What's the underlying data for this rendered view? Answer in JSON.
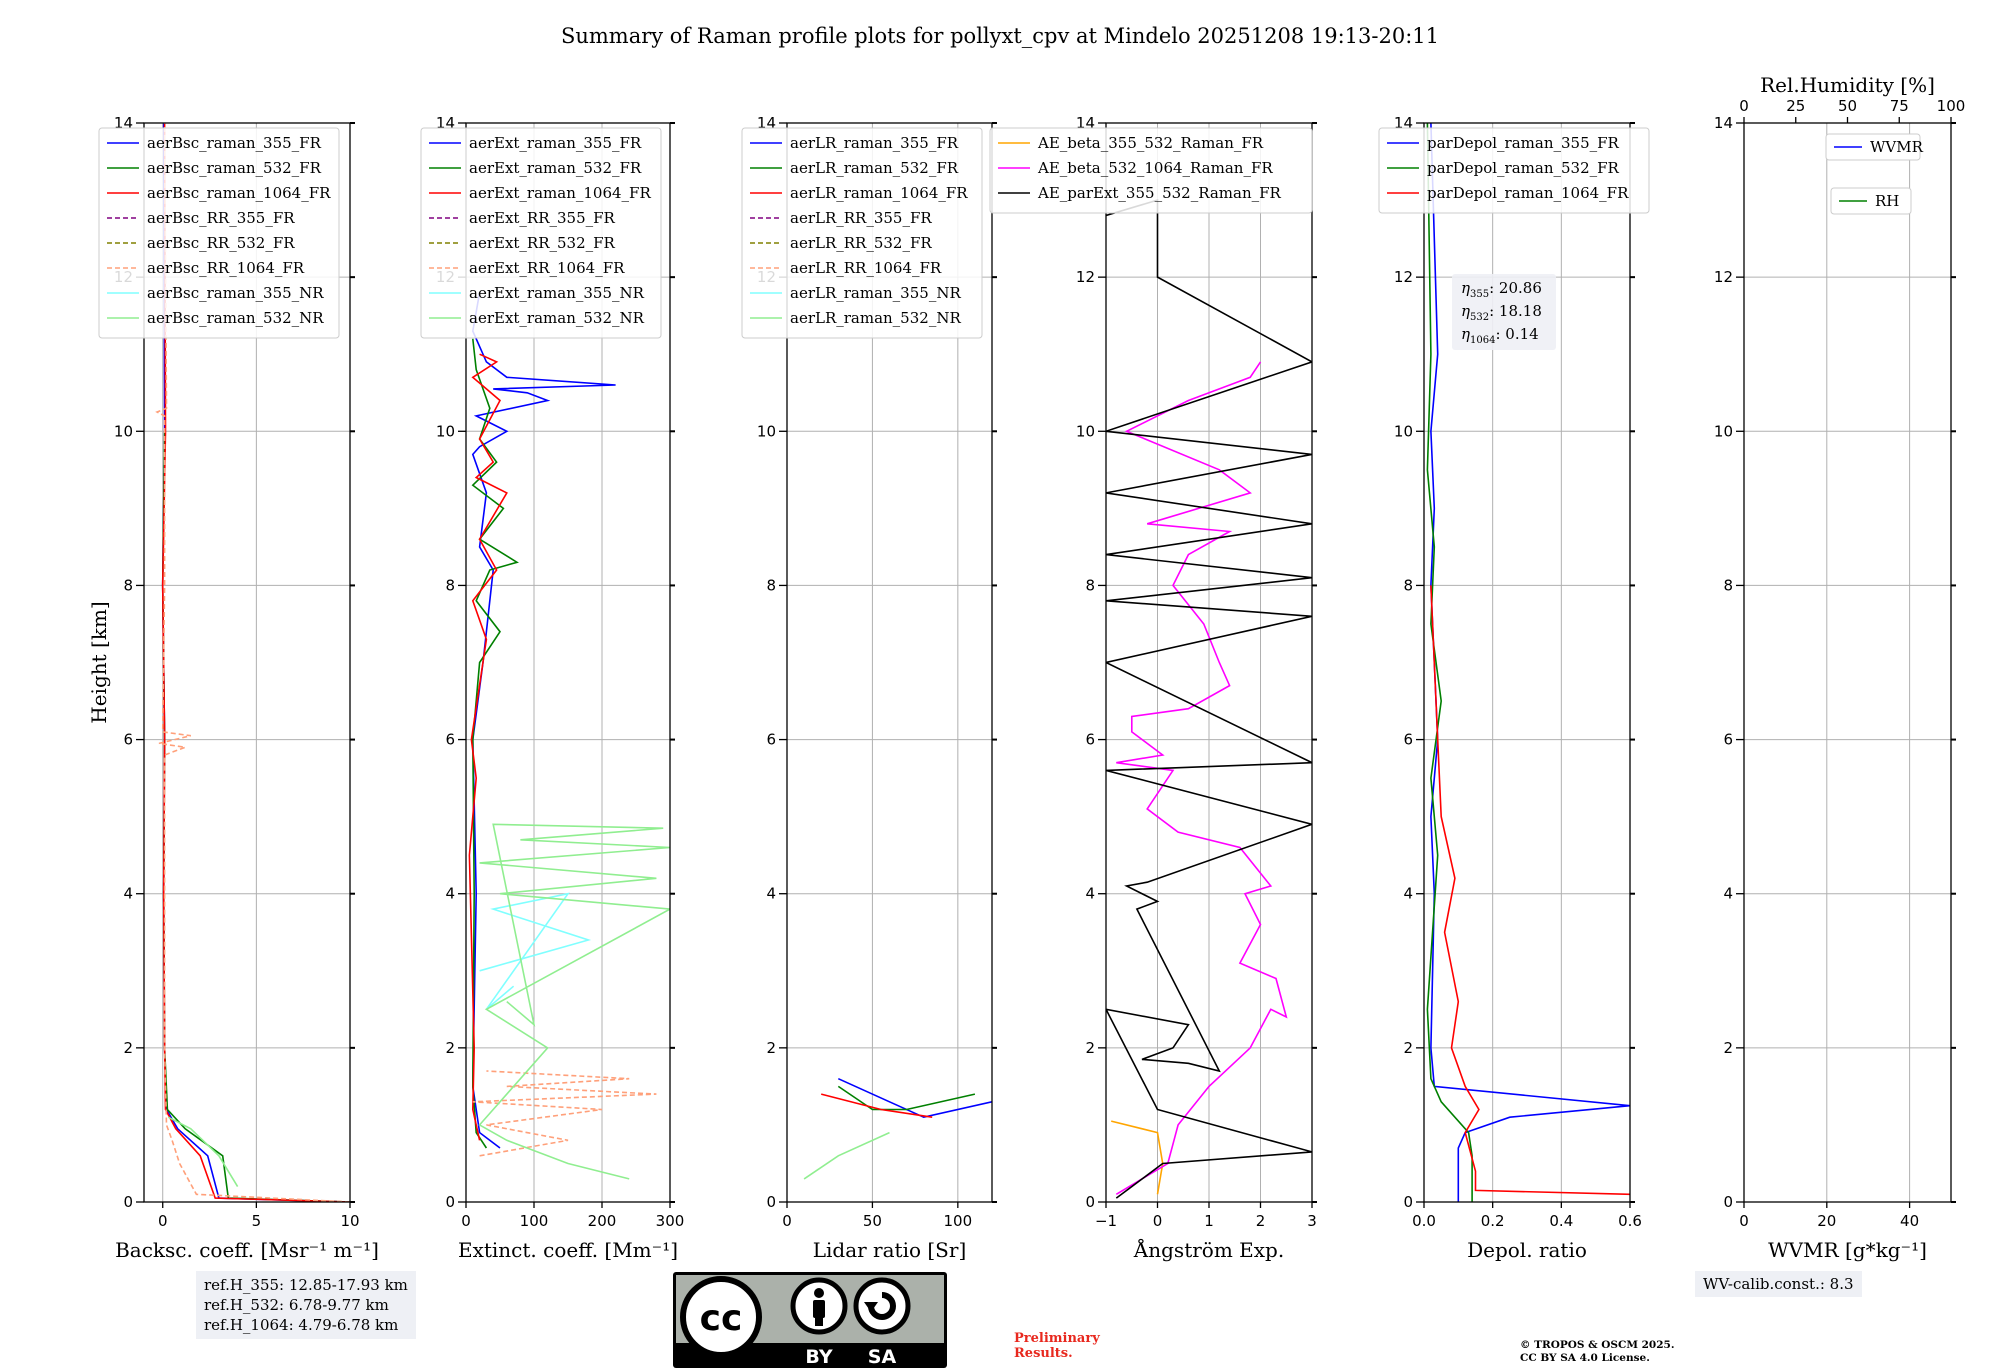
{
  "title": "Summary of Raman profile plots for pollyxt_cpv at Mindelo 20251208 19:13-20:11",
  "colors": {
    "blue": "#0000ff",
    "green": "#008000",
    "red": "#ff0000",
    "purple": "#800080",
    "olive": "#808000",
    "salmon": "#ffa07a",
    "cyan": "#80ffff",
    "lightgreen": "#90ee90",
    "orange": "#ffa500",
    "magenta": "#ff00ff",
    "black": "#000000"
  },
  "chart_data": [
    {
      "type": "line",
      "id": "bsc",
      "xlabel": "Backsc. coeff. [Msr⁻¹ m⁻¹]",
      "ylabel": "Height [km]",
      "xlim": [
        -1,
        10
      ],
      "ylim": [
        0,
        14
      ],
      "xticks": [
        0,
        5,
        10
      ],
      "xtick_labels": [
        "0",
        "5",
        "10"
      ],
      "yticks": [
        0,
        2,
        4,
        6,
        8,
        10,
        12,
        14
      ],
      "legend": [
        "aerBsc_raman_355_FR",
        "aerBsc_raman_532_FR",
        "aerBsc_raman_1064_FR",
        "aerBsc_RR_355_FR",
        "aerBsc_RR_532_FR",
        "aerBsc_RR_1064_FR",
        "aerBsc_raman_355_NR",
        "aerBsc_raman_532_NR"
      ],
      "series": [
        {
          "name": "aerBsc_raman_355_FR",
          "color": "blue",
          "dash": false,
          "x": [
            10,
            3.0,
            2.4,
            0.8,
            0.2,
            0.1,
            0.05,
            0.1,
            0.0,
            0.1,
            0.05
          ],
          "y": [
            0,
            0.05,
            0.6,
            0.95,
            1.2,
            2,
            4,
            6,
            8,
            10,
            14
          ]
        },
        {
          "name": "aerBsc_raman_532_FR",
          "color": "green",
          "dash": false,
          "x": [
            10,
            3.5,
            3.2,
            1.2,
            0.25,
            0.1,
            0.05,
            0.1,
            0.0,
            0.1
          ],
          "y": [
            0,
            0.05,
            0.6,
            0.95,
            1.2,
            2,
            4,
            6,
            8,
            10
          ]
        },
        {
          "name": "aerBsc_raman_1064_FR",
          "color": "red",
          "dash": false,
          "x": [
            10,
            2.8,
            2.0,
            0.7,
            0.15,
            0.1,
            0.05,
            0.1,
            0.0,
            0.15,
            0.1
          ],
          "y": [
            0,
            0.05,
            0.6,
            0.95,
            1.2,
            2,
            4,
            6,
            8,
            10,
            14
          ]
        },
        {
          "name": "aerBsc_RR_1064_FR",
          "color": "salmon",
          "dash": true,
          "x": [
            10,
            1.8,
            0.9,
            0.5,
            0.2,
            0.1,
            0.1,
            1.2,
            -0.2,
            1.5,
            0.0,
            0.1,
            0.1,
            -0.3,
            0.2,
            0.1
          ],
          "y": [
            0,
            0.1,
            0.5,
            0.8,
            1.0,
            2,
            5.8,
            5.9,
            5.95,
            6.05,
            6.1,
            8,
            10.2,
            10.25,
            10.3,
            14
          ]
        },
        {
          "name": "aerBsc_raman_532_NR",
          "color": "lightgreen",
          "dash": false,
          "x": [
            4.0,
            3.0,
            1.5,
            0.3
          ],
          "y": [
            0.2,
            0.6,
            0.95,
            1.1
          ]
        }
      ]
    },
    {
      "type": "line",
      "id": "ext",
      "xlabel": "Extinct. coeff. [Mm⁻¹]",
      "ylabel": "",
      "xlim": [
        0,
        300
      ],
      "ylim": [
        0,
        14
      ],
      "xticks": [
        0,
        100,
        200,
        300
      ],
      "xtick_labels": [
        "0",
        "100",
        "200",
        "300"
      ],
      "yticks": [
        0,
        2,
        4,
        6,
        8,
        10,
        12,
        14
      ],
      "legend": [
        "aerExt_raman_355_FR",
        "aerExt_raman_532_FR",
        "aerExt_raman_1064_FR",
        "aerExt_RR_355_FR",
        "aerExt_RR_532_FR",
        "aerExt_RR_1064_FR",
        "aerExt_raman_355_NR",
        "aerExt_raman_532_NR"
      ],
      "series": [
        {
          "name": "aerExt_raman_355_FR",
          "color": "blue",
          "dash": false,
          "x": [
            50,
            20,
            10,
            15,
            10,
            25,
            40,
            20,
            30,
            10,
            20,
            60,
            15,
            120,
            90,
            40,
            220,
            60,
            30,
            10,
            20
          ],
          "y": [
            0.7,
            0.9,
            1.5,
            4,
            6,
            7,
            8.2,
            8.5,
            9.2,
            9.7,
            9.8,
            10.0,
            10.2,
            10.4,
            10.5,
            10.55,
            10.6,
            10.7,
            10.9,
            11.3,
            11.8
          ]
        },
        {
          "name": "aerExt_raman_532_FR",
          "color": "green",
          "dash": false,
          "x": [
            30,
            15,
            10,
            12,
            10,
            20,
            50,
            15,
            35,
            75,
            20,
            55,
            10,
            45,
            20,
            35,
            15,
            10
          ],
          "y": [
            0.7,
            0.9,
            1.5,
            4,
            6,
            7,
            7.4,
            7.8,
            8.2,
            8.3,
            8.6,
            9.0,
            9.3,
            9.6,
            9.9,
            10.3,
            10.8,
            11.2
          ]
        },
        {
          "name": "aerExt_raman_1064_FR",
          "color": "red",
          "dash": false,
          "x": [
            20,
            10,
            12,
            5,
            15,
            8,
            30,
            10,
            45,
            20,
            60,
            15,
            40,
            20,
            50,
            10,
            45,
            20
          ],
          "y": [
            0.8,
            1.2,
            2,
            4.5,
            5.5,
            6,
            7.3,
            7.8,
            8.2,
            8.6,
            9.2,
            9.4,
            9.6,
            9.9,
            10.4,
            10.7,
            10.9,
            11.0
          ]
        },
        {
          "name": "aerExt_RR_1064_FR",
          "color": "salmon",
          "dash": true,
          "x": [
            20,
            150,
            30,
            200,
            10,
            280,
            60,
            240,
            30
          ],
          "y": [
            0.6,
            0.8,
            1.0,
            1.2,
            1.3,
            1.4,
            1.5,
            1.6,
            1.7
          ]
        },
        {
          "name": "aerExt_raman_355_NR",
          "color": "cyan",
          "dash": false,
          "x": [
            20,
            180,
            40,
            150,
            30,
            70
          ],
          "y": [
            3.0,
            3.4,
            3.8,
            4.0,
            2.5,
            2.8
          ]
        },
        {
          "name": "aerExt_raman_532_NR",
          "color": "lightgreen",
          "dash": false,
          "x": [
            240,
            150,
            60,
            20,
            120,
            30,
            300,
            50,
            280,
            20,
            300,
            80,
            290,
            40,
            100,
            60
          ],
          "y": [
            0.3,
            0.5,
            0.8,
            1.0,
            2.0,
            2.5,
            3.8,
            4.0,
            4.2,
            4.4,
            4.6,
            4.7,
            4.85,
            4.9,
            2.3,
            2.6
          ]
        }
      ]
    },
    {
      "type": "line",
      "id": "lr",
      "xlabel": "Lidar ratio [Sr]",
      "ylabel": "",
      "xlim": [
        0,
        120
      ],
      "ylim": [
        0,
        14
      ],
      "xticks": [
        0,
        50,
        100
      ],
      "xtick_labels": [
        "0",
        "50",
        "100"
      ],
      "yticks": [
        0,
        2,
        4,
        6,
        8,
        10,
        12,
        14
      ],
      "legend": [
        "aerLR_raman_355_FR",
        "aerLR_raman_532_FR",
        "aerLR_raman_1064_FR",
        "aerLR_RR_355_FR",
        "aerLR_RR_532_FR",
        "aerLR_RR_1064_FR",
        "aerLR_raman_355_NR",
        "aerLR_raman_532_NR"
      ],
      "series": [
        {
          "name": "aerLR_raman_355_FR",
          "color": "blue",
          "dash": false,
          "x": [
            30,
            60,
            80,
            120
          ],
          "y": [
            1.6,
            1.3,
            1.1,
            1.3
          ]
        },
        {
          "name": "aerLR_raman_532_FR",
          "color": "green",
          "dash": false,
          "x": [
            30,
            50,
            70,
            110
          ],
          "y": [
            1.5,
            1.2,
            1.2,
            1.4
          ]
        },
        {
          "name": "aerLR_raman_1064_FR",
          "color": "red",
          "dash": false,
          "x": [
            20,
            55,
            85
          ],
          "y": [
            1.4,
            1.2,
            1.1
          ]
        },
        {
          "name": "aerLR_raman_532_NR",
          "color": "lightgreen",
          "dash": false,
          "x": [
            60,
            30,
            10
          ],
          "y": [
            0.9,
            0.6,
            0.3
          ]
        }
      ]
    },
    {
      "type": "line",
      "id": "ae",
      "xlabel": "Ångström Exp.",
      "ylabel": "",
      "xlim": [
        -1,
        3
      ],
      "ylim": [
        0,
        14
      ],
      "xticks": [
        -1,
        0,
        1,
        2,
        3
      ],
      "xtick_labels": [
        "−1",
        "0",
        "1",
        "2",
        "3"
      ],
      "yticks": [
        0,
        2,
        4,
        6,
        8,
        10,
        12,
        14
      ],
      "legend": [
        "AE_beta_355_532_Raman_FR",
        "AE_beta_532_1064_Raman_FR",
        "AE_parExt_355_532_Raman_FR"
      ],
      "series": [
        {
          "name": "AE_beta_355_532_Raman_FR",
          "color": "orange",
          "dash": false,
          "x": [
            -0.9,
            0.0,
            0.1,
            0.0
          ],
          "y": [
            1.05,
            0.9,
            0.5,
            0.1
          ]
        },
        {
          "name": "AE_beta_532_1064_Raman_FR",
          "color": "magenta",
          "dash": false,
          "x": [
            -0.8,
            0.2,
            0.4,
            1.0,
            1.8,
            2.2,
            2.5,
            2.3,
            1.6,
            2.0,
            1.7,
            2.2,
            1.6,
            0.4,
            -0.2,
            0.3,
            -0.8,
            0.1,
            -0.5,
            -0.5,
            0.6,
            1.4,
            1.2,
            0.9,
            0.3,
            0.6,
            1.4,
            -0.2,
            1.8,
            1.2,
            -0.6,
            0.6,
            1.8,
            2.0
          ],
          "y": [
            0.1,
            0.5,
            1.0,
            1.5,
            2.0,
            2.5,
            2.4,
            2.9,
            3.1,
            3.6,
            4.0,
            4.1,
            4.6,
            4.8,
            5.1,
            5.6,
            5.7,
            5.8,
            6.1,
            6.3,
            6.4,
            6.7,
            7.0,
            7.5,
            8.0,
            8.4,
            8.7,
            8.8,
            9.2,
            9.5,
            10.0,
            10.4,
            10.7,
            10.9
          ]
        },
        {
          "name": "AE_parExt_355_532_Raman_FR",
          "color": "black",
          "dash": false,
          "x": [
            -0.8,
            0.1,
            3,
            0.0,
            -1,
            0.6,
            0.3,
            -0.3,
            0.6,
            1.2,
            -0.4,
            0.0,
            -0.6,
            -0.2,
            3,
            -1,
            3,
            -1,
            3,
            -1,
            3,
            -1,
            3,
            -1,
            3,
            -1,
            3,
            0,
            0,
            -1
          ],
          "y": [
            0.05,
            0.5,
            0.65,
            1.2,
            2.5,
            2.3,
            2.0,
            1.85,
            1.8,
            1.7,
            3.8,
            3.9,
            4.1,
            4.15,
            4.9,
            5.6,
            5.7,
            7.0,
            7.6,
            7.8,
            8.1,
            8.4,
            8.8,
            9.2,
            9.7,
            10.0,
            10.9,
            12.0,
            13.0,
            12.8
          ]
        }
      ]
    },
    {
      "type": "line",
      "id": "depol",
      "xlabel": "Depol. ratio",
      "ylabel": "",
      "xlim": [
        0,
        0.6
      ],
      "ylim": [
        0,
        14
      ],
      "xticks": [
        0,
        0.2,
        0.4,
        0.6
      ],
      "xtick_labels": [
        "0.0",
        "0.2",
        "0.4",
        "0.6"
      ],
      "yticks": [
        0,
        2,
        4,
        6,
        8,
        10,
        12,
        14
      ],
      "legend": [
        "parDepol_raman_355_FR",
        "parDepol_raman_532_FR",
        "parDepol_raman_1064_FR"
      ],
      "annotation": [
        {
          "sub": "355",
          "value": "20.86"
        },
        {
          "sub": "532",
          "value": "18.18"
        },
        {
          "sub": "1064",
          "value": "0.14"
        }
      ],
      "series": [
        {
          "name": "parDepol_raman_355_FR",
          "color": "blue",
          "dash": false,
          "x": [
            0.1,
            0.1,
            0.12,
            0.25,
            0.6,
            0.03,
            0.02,
            0.03,
            0.02,
            0.04,
            0.02,
            0.03,
            0.02,
            0.04,
            0.02
          ],
          "y": [
            0,
            0.7,
            0.9,
            1.1,
            1.25,
            1.5,
            2,
            4,
            5,
            6,
            8,
            9,
            10,
            11,
            14
          ]
        },
        {
          "name": "parDepol_raman_532_FR",
          "color": "green",
          "dash": false,
          "x": [
            0.14,
            0.14,
            0.13,
            0.05,
            0.02,
            0.01,
            0.04,
            0.02,
            0.05,
            0.02,
            0.03,
            0.01,
            0.02,
            0.01
          ],
          "y": [
            0,
            0.6,
            0.9,
            1.3,
            1.6,
            2.5,
            4.5,
            5.5,
            6.5,
            7.5,
            8.5,
            9.5,
            11,
            14
          ]
        },
        {
          "name": "parDepol_raman_1064_FR",
          "color": "red",
          "dash": false,
          "x": [
            0.6,
            0.15,
            0.15,
            0.12,
            0.16,
            0.12,
            0.08,
            0.1,
            0.06,
            0.09,
            0.05,
            0.04,
            0.02
          ],
          "y": [
            0.1,
            0.15,
            0.4,
            0.9,
            1.2,
            1.5,
            2.0,
            2.6,
            3.5,
            4.2,
            5.0,
            6.0,
            8.0
          ]
        }
      ]
    },
    {
      "type": "line",
      "id": "wv",
      "xlabel": "WVMR [g*kg⁻¹]",
      "ylabel": "",
      "xlim": [
        0,
        50
      ],
      "ylim": [
        0,
        14
      ],
      "xticks": [
        0,
        20,
        40
      ],
      "xtick_labels": [
        "0",
        "20",
        "40"
      ],
      "yticks": [
        0,
        2,
        4,
        6,
        8,
        10,
        12,
        14
      ],
      "top_xlabel": "Rel.Humidity [%]",
      "top_xlim": [
        0,
        100
      ],
      "top_xticks": [
        "0",
        "25",
        "50",
        "75",
        "100"
      ],
      "legend": [
        "WVMR",
        "RH"
      ],
      "series": []
    }
  ],
  "footer": {
    "ref_lines": [
      "ref.H_355: 12.85-17.93 km",
      "ref.H_532: 6.78-9.77 km",
      "ref.H_1064: 4.79-6.78 km"
    ],
    "wv_calib": "WV-calib.const.: 8.3",
    "preliminary_1": "Preliminary",
    "preliminary_2": "Results.",
    "copyright_1": "© TROPOS & OSCM 2025.",
    "copyright_2": "CC BY SA 4.0 License.",
    "cc_mark": "cc",
    "cc_by": "BY",
    "cc_sa": "SA"
  }
}
